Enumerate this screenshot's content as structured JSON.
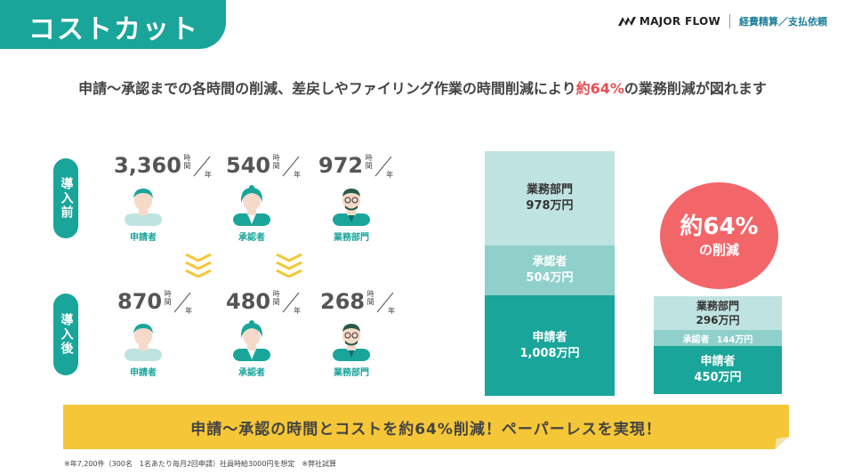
{
  "slide": {
    "title": "コストカット",
    "brand_name": "MAJOR FLOW",
    "brand_sub": "経費精算／支払依頼",
    "headline_pre": "申請〜承認までの各時間の削減、差戻しやファイリング作業の時間削減により",
    "headline_highlight": "約64%",
    "headline_post": "の業務削減が図れます"
  },
  "phases": {
    "before": "導入前",
    "after": "導入後"
  },
  "unit": {
    "top": "時間",
    "bottom": "年"
  },
  "before": [
    {
      "value": "3,360",
      "role": "申請者"
    },
    {
      "value": "540",
      "role": "承認者"
    },
    {
      "value": "972",
      "role": "業務部門"
    }
  ],
  "after": [
    {
      "value": "870",
      "role": "申請者"
    },
    {
      "value": "480",
      "role": "承認者"
    },
    {
      "value": "268",
      "role": "業務部門"
    }
  ],
  "bars_before": {
    "dept": {
      "label": "業務部門",
      "value": "978万円"
    },
    "approver": {
      "label": "承認者",
      "value": "504万円"
    },
    "applicant": {
      "label": "申請者",
      "value": "1,008万円"
    }
  },
  "bars_after": {
    "dept": {
      "label": "業務部門",
      "value": "296万円"
    },
    "approver": {
      "label": "承認者",
      "value": "144万円"
    },
    "applicant": {
      "label": "申請者",
      "value": "450万円"
    }
  },
  "badge": {
    "line1": "約64%",
    "line2": "の削減"
  },
  "banner": "申請〜承認の時間とコストを約64%削減！ペーパーレスを実現！",
  "footnote": "※年7,200件（300名　1名あたり毎月2回申請）社員時給3000円を想定　※弊社試算",
  "colors": {
    "teal": "#1aa59a",
    "light_teal": "#bfe3e0",
    "mid_teal": "#8fd0ca",
    "red": "#e84f55",
    "badge_red": "#f2666a",
    "yellow": "#f5c638",
    "chevron": "#f5c638"
  },
  "icons": [
    "brand-logo-icon",
    "applicant-person-icon",
    "approver-person-icon",
    "dept-person-icon",
    "chevron-down-icon"
  ]
}
